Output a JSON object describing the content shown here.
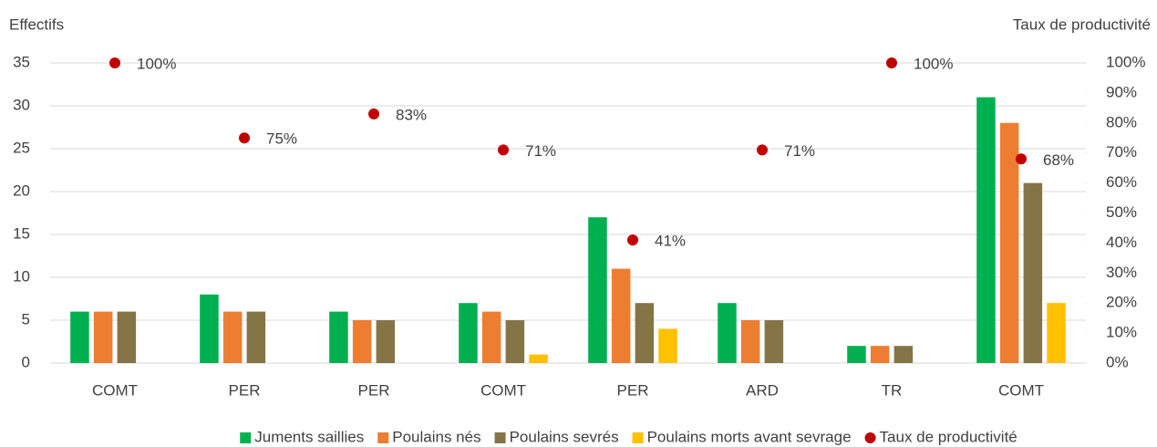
{
  "chart_data": {
    "type": "bar",
    "y_label": "Effectifs",
    "y2_label": "Taux de productivité",
    "categories": [
      "COMT",
      "PER",
      "PER",
      "COMT",
      "PER",
      "ARD",
      "TR",
      "COMT"
    ],
    "series": [
      {
        "name": "Juments saillies",
        "color": "#00b050",
        "values": [
          6,
          8,
          6,
          7,
          17,
          7,
          2,
          31
        ]
      },
      {
        "name": "Poulains nés",
        "color": "#ed7d31",
        "values": [
          6,
          6,
          5,
          6,
          11,
          5,
          2,
          28
        ]
      },
      {
        "name": "Poulains sevrés",
        "color": "#857446",
        "values": [
          6,
          6,
          5,
          5,
          7,
          5,
          2,
          21
        ]
      },
      {
        "name": "Poulains morts avant sevrage",
        "color": "#ffc000",
        "values": [
          0,
          0,
          0,
          1,
          4,
          0,
          0,
          7
        ]
      },
      {
        "name": "Taux de productivité",
        "color": "#c00000",
        "axis": "y2",
        "type": "scatter",
        "values": [
          100,
          75,
          83,
          71,
          41,
          71,
          100,
          68
        ],
        "value_labels": [
          "100%",
          "75%",
          "83%",
          "71%",
          "41%",
          "71%",
          "100%",
          "68%"
        ]
      }
    ],
    "ylim": [
      0,
      35
    ],
    "yticks": [
      0,
      5,
      10,
      15,
      20,
      25,
      30,
      35
    ],
    "y2lim": [
      0,
      100
    ],
    "y2ticks": [
      {
        "value": 0,
        "label": "0%"
      },
      {
        "value": 10,
        "label": "10%"
      },
      {
        "value": 20,
        "label": "20%"
      },
      {
        "value": 30,
        "label": "30%"
      },
      {
        "value": 40,
        "label": "40%"
      },
      {
        "value": 50,
        "label": "50%"
      },
      {
        "value": 60,
        "label": "60%"
      },
      {
        "value": 70,
        "label": "70%"
      },
      {
        "value": 80,
        "label": "80%"
      },
      {
        "value": 90,
        "label": "90%"
      },
      {
        "value": 100,
        "label": "100%"
      }
    ],
    "grid": true,
    "legend": "bottom"
  }
}
